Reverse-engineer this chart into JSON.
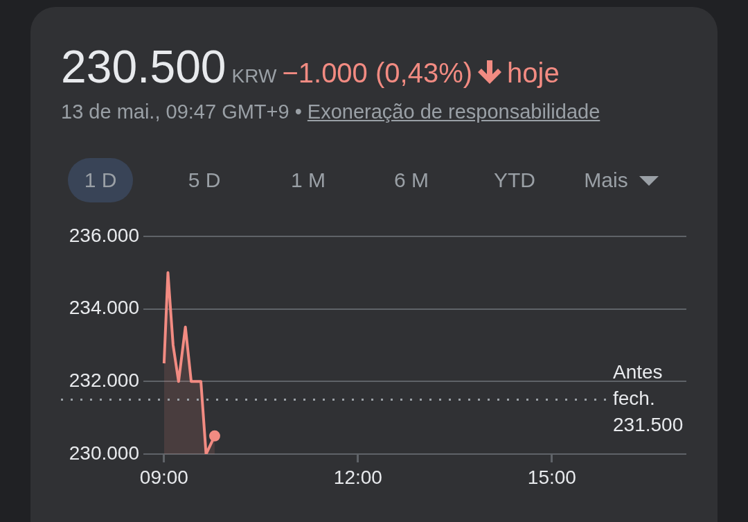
{
  "chart_data": {
    "type": "area",
    "title": "230.500",
    "subtitle": "13 de mai., 09:47 GMT+9 •",
    "annotations": [
      "KRW",
      "−1.000 (0,43%)",
      "hoje",
      "Exoneração de responsabilidade",
      "1 D",
      "5 D",
      "1 M",
      "6 M",
      "YTD",
      "Mais"
    ],
    "x": [
      9.0,
      9.06,
      9.14,
      9.225,
      9.33,
      9.42,
      9.57,
      9.65,
      9.783
    ],
    "series": [
      {
        "color": "#f28b82",
        "values": [
          232500,
          235000,
          233000,
          232000,
          233500,
          232000,
          232000,
          230000,
          230500
        ]
      }
    ],
    "xlim": [
      8.68,
      17.08
    ],
    "xticks": [
      {
        "value": 9,
        "label": "09:00"
      },
      {
        "value": 12,
        "label": "12:00"
      },
      {
        "value": 15,
        "label": "15:00"
      }
    ],
    "ylim": [
      230000,
      236000
    ],
    "yticks": [
      {
        "value": 230000,
        "label": "230.000"
      },
      {
        "value": 232000,
        "label": "232.000"
      },
      {
        "value": 234000,
        "label": "234.000"
      },
      {
        "value": 236000,
        "label": "236.000"
      }
    ],
    "grid": "y",
    "legend": false,
    "ref_lines": [
      {
        "axis": "y",
        "value": 231500,
        "label": "Antes fech. 231.500",
        "color": "#9aa0a6",
        "line_style": "dotted"
      }
    ]
  }
}
